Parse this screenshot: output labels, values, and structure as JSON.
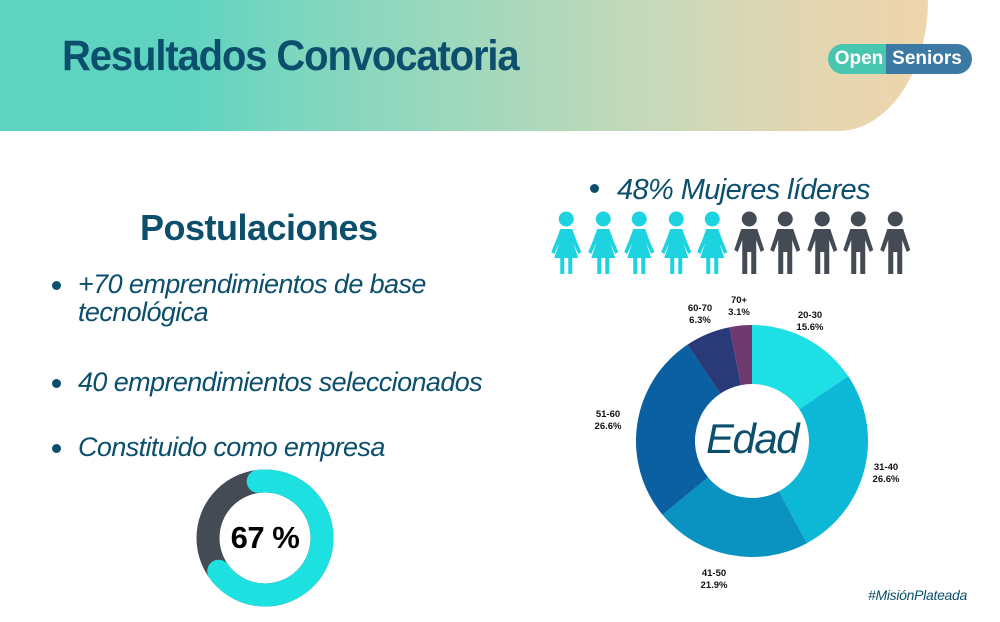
{
  "header": {
    "title": "Resultados Convocatoria",
    "logo": {
      "part1": "Open",
      "part2": "Seniors",
      "color1": "#48C6B0",
      "color2": "#3C79A3"
    },
    "gradient": [
      "#5ED3C0",
      "#EFD5AC"
    ]
  },
  "postulaciones": {
    "title": "Postulaciones",
    "bullets": [
      {
        "line1": "+70 emprendimientos de base",
        "line2": "tecnológica"
      },
      {
        "text": "40 emprendimientos seleccionados"
      },
      {
        "text": "Constituido como empresa"
      }
    ],
    "constituted_percent_label": "67 %"
  },
  "women": {
    "heading": "48% Mujeres líderes",
    "women_icons": 5,
    "men_icons": 5,
    "woman_color": "#1DD3DF",
    "man_color": "#454B55"
  },
  "age_chart": {
    "center_label": "Edad",
    "slices": [
      {
        "label": "20-30",
        "pct_label": "15.6%"
      },
      {
        "label": "31-40",
        "pct_label": "26.6%"
      },
      {
        "label": "41-50",
        "pct_label": "21.9%"
      },
      {
        "label": "51-60",
        "pct_label": "26.6%"
      },
      {
        "label": "60-70",
        "pct_label": "6.3%"
      },
      {
        "label": "70+",
        "pct_label": "3.1%"
      }
    ]
  },
  "footer": {
    "hashtag": "#MisiónPlateada"
  },
  "chart_data": [
    {
      "type": "pie",
      "title": "Edad",
      "variant": "donut",
      "categories": [
        "20-30",
        "31-40",
        "41-50",
        "51-60",
        "60-70",
        "70+"
      ],
      "values": [
        15.6,
        26.6,
        21.9,
        26.6,
        6.3,
        3.1
      ],
      "colors": [
        "#1EE0E4",
        "#0CB8D6",
        "#0A92C0",
        "#0A60A0",
        "#2A3A78",
        "#6E3A6E"
      ],
      "unit": "%",
      "start_angle": "12 o'clock, clockwise"
    },
    {
      "type": "pie",
      "title": "Constituido como empresa",
      "variant": "donut",
      "categories": [
        "Constituido",
        "No constituido"
      ],
      "values": [
        67,
        33
      ],
      "colors": [
        "#1DE0E0",
        "#454B55"
      ],
      "center_label": "67 %"
    },
    {
      "type": "pictogram",
      "title": "48% Mujeres líderes",
      "categories": [
        "Mujeres",
        "Hombres"
      ],
      "values": [
        48,
        52
      ],
      "icons": [
        5,
        5
      ]
    }
  ]
}
